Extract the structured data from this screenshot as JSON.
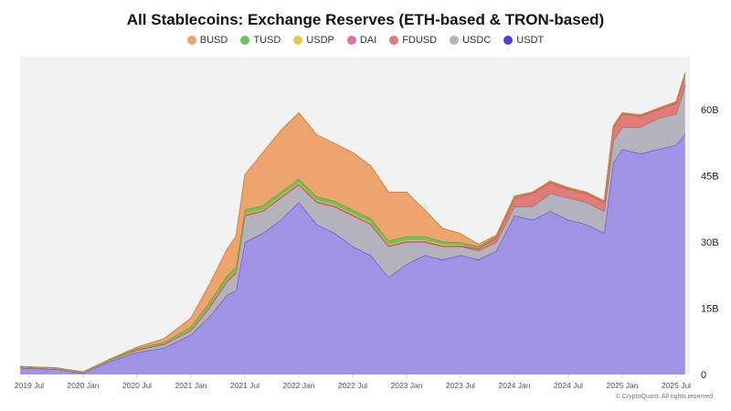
{
  "chart_data": {
    "type": "area",
    "stacked": true,
    "title": "All Stablecoins: Exchange Reserves (ETH-based & TRON-based)",
    "x_ticks": [
      "2019 Jul",
      "2020 Jan",
      "2020 Jul",
      "2021 Jan",
      "2021 Jul",
      "2022 Jan",
      "2022 Jul",
      "2023 Jan",
      "2023 Jul",
      "2024 Jan",
      "2024 Jul",
      "2025 Jan",
      "2025 Jul"
    ],
    "y_ticks": [
      "0",
      "15B",
      "30B",
      "45B",
      "60B"
    ],
    "ylim": [
      0,
      72
    ],
    "y_unit": "B",
    "y_axis_position": "right",
    "legend_position": "top",
    "grid": false,
    "x": [
      "2019-06",
      "2019-10",
      "2020-01",
      "2020-04",
      "2020-07",
      "2020-10",
      "2021-01",
      "2021-03",
      "2021-05",
      "2021-06",
      "2021-07",
      "2021-09",
      "2021-11",
      "2022-01",
      "2022-03",
      "2022-05",
      "2022-07",
      "2022-09",
      "2022-11",
      "2023-01",
      "2023-03",
      "2023-05",
      "2023-07",
      "2023-09",
      "2023-11",
      "2024-01",
      "2024-03",
      "2024-05",
      "2024-07",
      "2024-09",
      "2024-11",
      "2024-12",
      "2025-01",
      "2025-03",
      "2025-05",
      "2025-07",
      "2025-08"
    ],
    "series": [
      {
        "name": "USDT",
        "color": "#a093e6",
        "line": "#4a3fd8",
        "values": [
          1.5,
          1.2,
          0.3,
          3,
          5,
          6,
          9,
          13,
          18,
          19,
          30,
          32,
          35,
          39,
          34,
          32,
          29,
          27,
          22,
          25,
          27,
          26,
          27,
          26,
          28,
          36,
          35,
          37,
          35,
          34,
          32,
          48,
          51,
          50,
          51,
          52,
          54.5
        ]
      },
      {
        "name": "USDC",
        "color": "#b3b2bd",
        "line": "#6e6d78",
        "values": [
          0.2,
          0.2,
          0.2,
          0.3,
          0.5,
          0.8,
          1,
          2,
          3,
          4,
          6,
          5,
          5,
          4,
          5,
          6,
          7,
          7,
          7,
          5,
          3,
          3,
          2,
          2,
          2,
          2,
          3,
          4,
          5,
          5,
          5,
          5,
          5,
          6,
          7,
          7,
          11
        ]
      },
      {
        "name": "FDUSD",
        "color": "#e27a78",
        "line": "#c94040",
        "values": [
          0,
          0,
          0,
          0,
          0,
          0,
          0,
          0,
          0,
          0,
          0,
          0,
          0,
          0,
          0,
          0,
          0,
          0,
          0,
          0,
          0,
          0,
          0,
          0.5,
          1,
          2,
          3,
          2.5,
          2,
          2,
          2,
          3,
          3,
          2.5,
          2,
          2.5,
          2.5
        ]
      },
      {
        "name": "DAI",
        "color": "#e070a8",
        "line": "#c0508a",
        "values": [
          0,
          0,
          0,
          0,
          0.1,
          0.1,
          0.1,
          0.2,
          0.2,
          0.2,
          0.2,
          0.2,
          0.2,
          0.2,
          0.2,
          0.2,
          0.2,
          0.2,
          0.2,
          0.2,
          0.2,
          0.2,
          0.2,
          0.1,
          0.1,
          0.1,
          0.1,
          0.1,
          0.1,
          0.1,
          0.1,
          0.1,
          0.1,
          0.1,
          0.1,
          0.1,
          0.1
        ]
      },
      {
        "name": "USDP",
        "color": "#e8c850",
        "line": "#c9a820",
        "values": [
          0,
          0,
          0,
          0,
          0.1,
          0.1,
          0.2,
          0.3,
          0.3,
          0.3,
          0.3,
          0.3,
          0.3,
          0.3,
          0.3,
          0.3,
          0.3,
          0.3,
          0.3,
          0.3,
          0.3,
          0.3,
          0.2,
          0.1,
          0.1,
          0.1,
          0.1,
          0.1,
          0.1,
          0.1,
          0.1,
          0.1,
          0.1,
          0.1,
          0.1,
          0.1,
          0.1
        ]
      },
      {
        "name": "TUSD",
        "color": "#6cc35a",
        "line": "#3f9a30",
        "values": [
          0.1,
          0.1,
          0.1,
          0.1,
          0.2,
          0.3,
          0.5,
          0.7,
          0.8,
          0.8,
          0.8,
          0.8,
          0.8,
          0.8,
          0.8,
          0.8,
          0.8,
          0.8,
          0.8,
          0.8,
          0.8,
          0.6,
          0.5,
          0.3,
          0.2,
          0.2,
          0.1,
          0.1,
          0.1,
          0.1,
          0.1,
          0.1,
          0.1,
          0.1,
          0.1,
          0.1,
          0.1
        ]
      },
      {
        "name": "BUSD",
        "color": "#eda46f",
        "line": "#d9803f",
        "values": [
          0,
          0,
          0,
          0.1,
          0.3,
          0.8,
          2,
          4,
          6,
          7,
          8,
          12,
          14,
          15,
          14,
          13,
          13,
          12,
          11,
          10,
          6,
          3,
          2,
          0.5,
          0.2,
          0,
          0,
          0,
          0,
          0,
          0,
          0,
          0,
          0,
          0,
          0,
          0
        ]
      }
    ],
    "legend_order": [
      "BUSD",
      "TUSD",
      "USDP",
      "DAI",
      "FDUSD",
      "USDC",
      "USDT"
    ],
    "watermark": "CryptoQuant"
  },
  "footer": {
    "copyright": "© CryptoQuant. All rights reserved"
  }
}
